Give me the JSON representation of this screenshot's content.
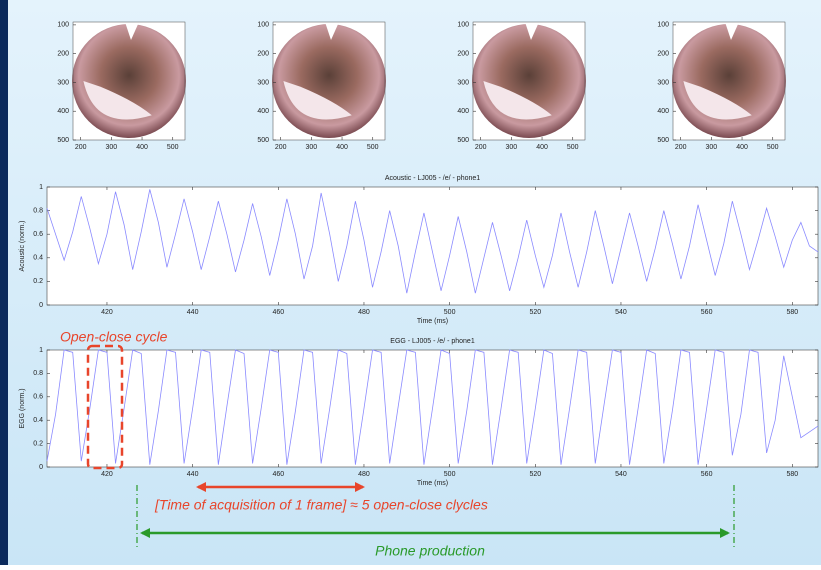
{
  "chart_data": [
    {
      "type": "image",
      "xlim": [
        175,
        540
      ],
      "ylim": [
        500,
        90
      ],
      "xticks": [
        200,
        300,
        400,
        500
      ],
      "yticks": [
        100,
        200,
        300,
        400,
        500
      ]
    },
    {
      "type": "image",
      "xlim": [
        175,
        540
      ],
      "ylim": [
        500,
        90
      ],
      "xticks": [
        200,
        300,
        400,
        500
      ],
      "yticks": [
        100,
        200,
        300,
        400,
        500
      ]
    },
    {
      "type": "image",
      "xlim": [
        175,
        540
      ],
      "ylim": [
        500,
        90
      ],
      "xticks": [
        200,
        300,
        400,
        500
      ],
      "yticks": [
        100,
        200,
        300,
        400,
        500
      ]
    },
    {
      "type": "image",
      "xlim": [
        175,
        540
      ],
      "ylim": [
        500,
        90
      ],
      "xticks": [
        200,
        300,
        400,
        500
      ],
      "yticks": [
        100,
        200,
        300,
        400,
        500
      ]
    },
    {
      "type": "line",
      "title": "Acoustic - LJ005 - /e/ - phone1",
      "xlabel": "Time (ms)",
      "ylabel": "Acoustic (norm.)",
      "color": "#8a8aff",
      "xlim": [
        406,
        586
      ],
      "ylim": [
        0,
        1
      ],
      "xticks": [
        420,
        440,
        460,
        480,
        500,
        520,
        540,
        560,
        580
      ],
      "yticks": [
        0,
        0.2,
        0.4,
        0.6,
        0.8,
        1
      ],
      "x": [
        406,
        408,
        410,
        412,
        414,
        416,
        418,
        420,
        422,
        424,
        426,
        428,
        430,
        432,
        434,
        436,
        438,
        440,
        442,
        444,
        446,
        448,
        450,
        452,
        454,
        456,
        458,
        460,
        462,
        464,
        466,
        468,
        470,
        472,
        474,
        476,
        478,
        480,
        482,
        484,
        486,
        488,
        490,
        492,
        494,
        496,
        498,
        500,
        502,
        504,
        506,
        508,
        510,
        512,
        514,
        516,
        518,
        520,
        522,
        524,
        526,
        528,
        530,
        532,
        534,
        536,
        538,
        540,
        542,
        544,
        546,
        548,
        550,
        552,
        554,
        556,
        558,
        560,
        562,
        564,
        566,
        568,
        570,
        572,
        574,
        576,
        578,
        580,
        582,
        584,
        586
      ],
      "values": [
        0.82,
        0.6,
        0.38,
        0.62,
        0.92,
        0.65,
        0.35,
        0.6,
        0.96,
        0.68,
        0.3,
        0.62,
        0.98,
        0.7,
        0.32,
        0.6,
        0.9,
        0.62,
        0.3,
        0.58,
        0.88,
        0.6,
        0.28,
        0.55,
        0.86,
        0.58,
        0.25,
        0.55,
        0.9,
        0.6,
        0.22,
        0.5,
        0.95,
        0.6,
        0.2,
        0.5,
        0.88,
        0.55,
        0.15,
        0.45,
        0.8,
        0.5,
        0.1,
        0.45,
        0.78,
        0.45,
        0.12,
        0.42,
        0.75,
        0.45,
        0.1,
        0.4,
        0.7,
        0.42,
        0.12,
        0.4,
        0.72,
        0.42,
        0.15,
        0.42,
        0.78,
        0.45,
        0.15,
        0.45,
        0.8,
        0.5,
        0.18,
        0.48,
        0.78,
        0.5,
        0.2,
        0.48,
        0.8,
        0.52,
        0.22,
        0.5,
        0.85,
        0.55,
        0.25,
        0.52,
        0.88,
        0.6,
        0.3,
        0.55,
        0.82,
        0.58,
        0.32,
        0.55,
        0.7,
        0.5,
        0.45
      ]
    },
    {
      "type": "line",
      "title": "EGG - LJ005 - /e/ - phone1",
      "xlabel": "Time (ms)",
      "ylabel": "EGG (norm.)",
      "color": "#8a8aff",
      "xlim": [
        406,
        586
      ],
      "ylim": [
        0,
        1
      ],
      "xticks": [
        420,
        440,
        460,
        480,
        500,
        520,
        540,
        560,
        580
      ],
      "yticks": [
        0,
        0.2,
        0.4,
        0.6,
        0.8,
        1
      ],
      "x": [
        406,
        408,
        410,
        412,
        414,
        416,
        418,
        420,
        422,
        424,
        426,
        428,
        430,
        432,
        434,
        436,
        438,
        440,
        442,
        444,
        446,
        448,
        450,
        452,
        454,
        456,
        458,
        460,
        462,
        464,
        466,
        468,
        470,
        472,
        474,
        476,
        478,
        480,
        482,
        484,
        486,
        488,
        490,
        492,
        494,
        496,
        498,
        500,
        502,
        504,
        506,
        508,
        510,
        512,
        514,
        516,
        518,
        520,
        522,
        524,
        526,
        528,
        530,
        532,
        534,
        536,
        538,
        540,
        542,
        544,
        546,
        548,
        550,
        552,
        554,
        556,
        558,
        560,
        562,
        564,
        566,
        568,
        570,
        572,
        574,
        576,
        578,
        580,
        582,
        584,
        586
      ],
      "values": [
        0.05,
        0.45,
        1,
        0.98,
        0.05,
        0.5,
        1,
        0.98,
        0.03,
        0.5,
        1,
        0.97,
        0.02,
        0.48,
        1,
        0.98,
        0.03,
        0.5,
        1,
        0.98,
        0.02,
        0.52,
        1,
        0.97,
        0.03,
        0.5,
        1,
        0.98,
        0.02,
        0.48,
        1,
        0.98,
        0.03,
        0.5,
        1,
        0.97,
        0.02,
        0.5,
        1,
        0.98,
        0.03,
        0.52,
        1,
        0.98,
        0.02,
        0.5,
        1,
        0.97,
        0.03,
        0.48,
        1,
        0.98,
        0.02,
        0.5,
        1,
        0.98,
        0.03,
        0.5,
        1,
        0.97,
        0.02,
        0.5,
        1,
        0.98,
        0.03,
        0.52,
        1,
        0.98,
        0.02,
        0.5,
        1,
        0.97,
        0.03,
        0.48,
        1,
        0.98,
        0.02,
        0.5,
        1,
        0.98,
        0.1,
        0.45,
        1,
        0.98,
        0.12,
        0.4,
        0.95,
        0.6,
        0.25,
        0.3,
        0.35
      ]
    }
  ],
  "annotations": {
    "cycle": "Open-close cycle",
    "frame": "[Time of acquisition of 1 frame] ≈ 5 open-close clycles",
    "phone": "Phone production"
  }
}
